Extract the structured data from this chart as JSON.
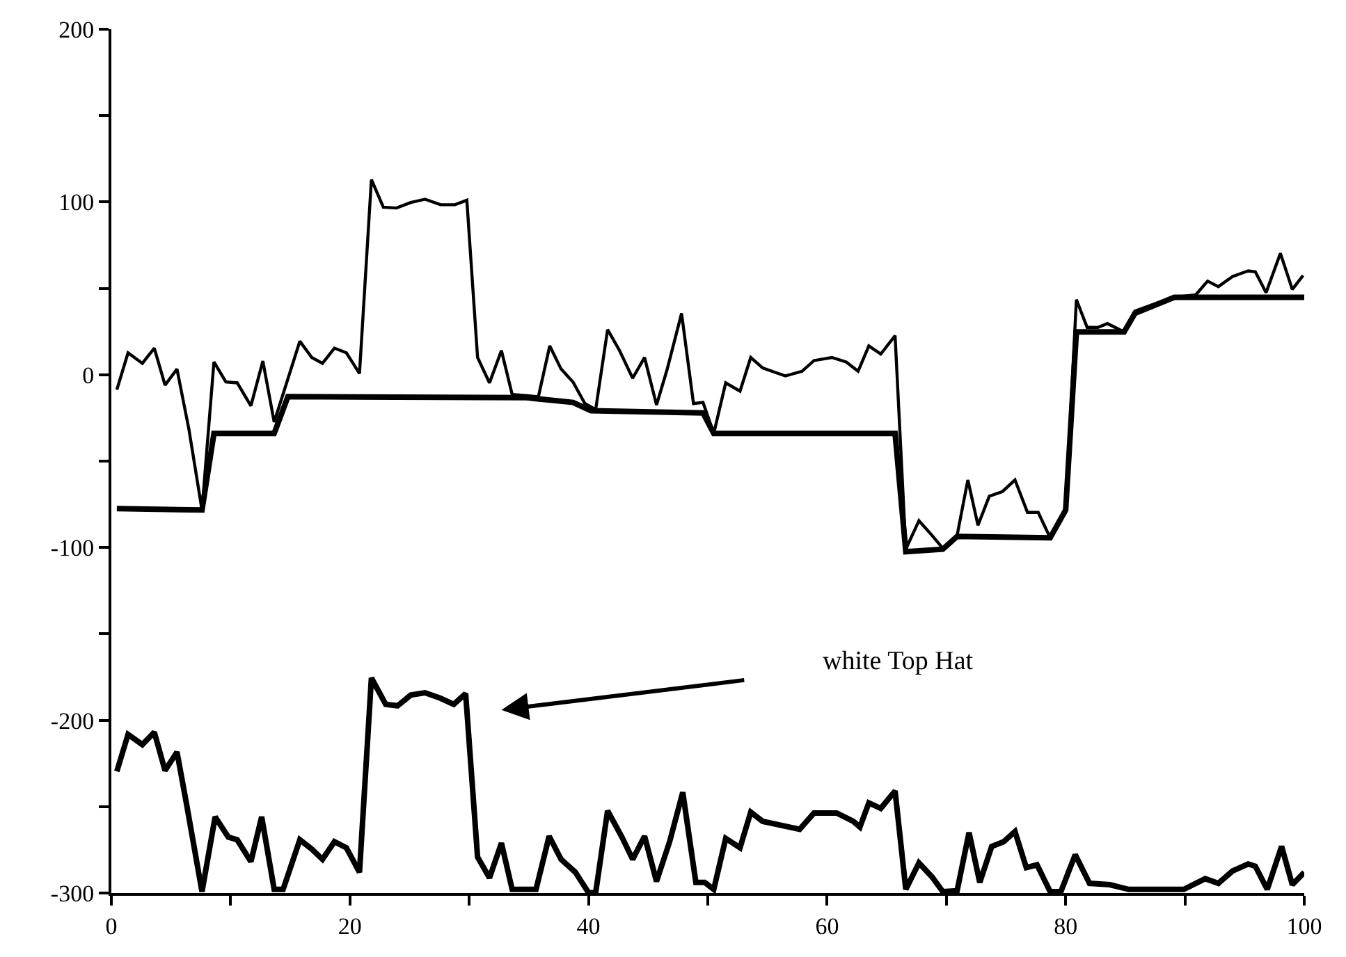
{
  "chart_data": {
    "type": "line",
    "series": [
      {
        "color": "#000000",
        "x": [
          0.46,
          1.4,
          2.6,
          3.6,
          4.5,
          5.5,
          6.5,
          7.6,
          8.6,
          9.6,
          10.55,
          11.7,
          12.7,
          13.65,
          15.8,
          16.8,
          17.7,
          18.7,
          19.7,
          20.8,
          21.8,
          22.8,
          23.9,
          25.1,
          26.3,
          27.6,
          28.8,
          29.8,
          30.7,
          31.7,
          32.7,
          33.6,
          35.8,
          36.75,
          37.7,
          38.7,
          39.7,
          40.6,
          41.6,
          42.6,
          43.7,
          44.7,
          45.7,
          46.6,
          47.8,
          48.8,
          49.6,
          50.5,
          51.5,
          52.7,
          53.6,
          54.6,
          56.5,
          57.9,
          58.9,
          60.4,
          61.6,
          62.6,
          63.5,
          64.5,
          65.7,
          66.6,
          67.7,
          68.8,
          69.7,
          70.9,
          71.8,
          72.65,
          73.6,
          74.7,
          75.75,
          76.8,
          77.7,
          78.7,
          80,
          80.9,
          81.8,
          82.7,
          83.5,
          84.9,
          85.8,
          87.6,
          89.1,
          90.9,
          91.9,
          92.8,
          94,
          95.3,
          95.9,
          96.8,
          98,
          99,
          99.9
        ],
        "values": [
          -8.7,
          12.7,
          6.6,
          15.4,
          -6,
          3.3,
          -31.5,
          -78.3,
          7.4,
          -4.2,
          -4.7,
          -18,
          7.9,
          -27.4,
          19.4,
          10,
          6.6,
          15.4,
          12.7,
          0.7,
          113,
          97,
          96.5,
          99.7,
          101.6,
          98.4,
          98.4,
          101,
          10,
          -4.7,
          14,
          -11.4,
          -12.7,
          16.7,
          3.3,
          -4.2,
          -16.7,
          -20.2,
          26.1,
          14,
          -2,
          10,
          -17.5,
          3.3,
          35.5,
          -16.7,
          -16,
          -34,
          -4.7,
          -9.5,
          10,
          3.9,
          -0.7,
          2,
          8.2,
          10,
          7.4,
          2,
          16.7,
          12,
          22.6,
          -101,
          -84.5,
          -93,
          -100.5,
          -93,
          -60.9,
          -87.1,
          -70.3,
          -67.6,
          -60.9,
          -79.7,
          -79.7,
          -94.4,
          -78.3,
          43.5,
          27.4,
          27.4,
          29.6,
          24.8,
          36.8,
          41.4,
          44.8,
          46.2,
          54.2,
          51,
          56.9,
          60.1,
          59.6,
          47.5,
          70.3,
          49.4,
          57.4
        ]
      },
      {
        "color": "#000000",
        "x": [
          0.46,
          7.6,
          8.6,
          13.65,
          14.8,
          34.8,
          38.7,
          40.2,
          49.6,
          50.5,
          65.7,
          66.6,
          69.7,
          70.9,
          78.7,
          80,
          80.9,
          84.9,
          85.8,
          89.1,
          100
        ],
        "values": [
          -77.5,
          -78.3,
          -34,
          -34,
          -12.7,
          -13.3,
          -16,
          -20.8,
          -22.1,
          -34,
          -34,
          -102.4,
          -101,
          -93.6,
          -94.4,
          -78.3,
          24.8,
          24.8,
          35.5,
          44.8,
          44.8
        ]
      },
      {
        "color": "#000000",
        "x": [
          0.46,
          1.4,
          2.6,
          3.6,
          4.5,
          5.5,
          6.3,
          7.6,
          8.7,
          9.8,
          10.55,
          11.7,
          12.6,
          13.65,
          14.4,
          15.8,
          16.8,
          17.7,
          18.7,
          19.7,
          20.8,
          21.8,
          23,
          24,
          25.1,
          26.3,
          27.6,
          28.7,
          29.7,
          30.7,
          31.7,
          32.7,
          33.6,
          35.6,
          36.7,
          37.7,
          38.9,
          40,
          40.6,
          41.6,
          42.8,
          43.7,
          44.7,
          45.7,
          46.8,
          47.9,
          49,
          49.75,
          50.5,
          51.5,
          52.7,
          53.6,
          54.6,
          57.7,
          58.9,
          60.8,
          62.2,
          62.75,
          63.5,
          64.5,
          65.7,
          66.6,
          67.7,
          68.8,
          69.7,
          70.9,
          71.9,
          72.8,
          73.8,
          74.8,
          75.75,
          76.7,
          77.6,
          78.7,
          79.6,
          80.8,
          82,
          83.7,
          85.3,
          89.9,
          91.7,
          92.8,
          94,
          95.3,
          95.9,
          96.9,
          98.1,
          99,
          100
        ],
        "values": [
          -229.6,
          -208.2,
          -214.1,
          -206.9,
          -229.1,
          -218.4,
          -248.4,
          -299.2,
          -255.9,
          -267.6,
          -269.2,
          -281.8,
          -255.9,
          -297.9,
          -297.9,
          -269.2,
          -274.6,
          -280.5,
          -270.3,
          -273.8,
          -288,
          -175.5,
          -190.8,
          -191.6,
          -185.4,
          -184.1,
          -187.3,
          -190.8,
          -184.6,
          -279.2,
          -291.2,
          -271.1,
          -297.9,
          -297.9,
          -267.1,
          -280.5,
          -288,
          -299.8,
          -299.8,
          -252.4,
          -267.6,
          -280.5,
          -267.1,
          -293.3,
          -270.3,
          -241.7,
          -293.9,
          -293.9,
          -297.9,
          -268.4,
          -273.8,
          -253.2,
          -258.5,
          -263.1,
          -253.7,
          -253.7,
          -258.5,
          -261.8,
          -247.8,
          -251,
          -240.9,
          -297.9,
          -282.6,
          -290.7,
          -299.2,
          -298.7,
          -265,
          -293.9,
          -273,
          -270.3,
          -264.4,
          -285.3,
          -283.7,
          -299.2,
          -299.2,
          -277.8,
          -294.4,
          -295.2,
          -297.9,
          -297.9,
          -291.7,
          -294.4,
          -287.2,
          -283.2,
          -284.5,
          -297.9,
          -273,
          -295.2,
          -288
        ]
      }
    ],
    "xlim": [
      0,
      100
    ],
    "xticks": [
      0,
      {
        "value": 10,
        "label": null
      },
      20,
      {
        "value": 30,
        "label": null
      },
      40,
      {
        "value": 50,
        "label": null
      },
      60,
      {
        "value": 70,
        "label": null
      },
      80,
      {
        "value": 90,
        "label": null
      },
      100
    ],
    "ylim": [
      -300,
      200
    ],
    "yticks": [
      -300,
      {
        "value": -250,
        "label": null
      },
      -200,
      {
        "value": -150,
        "label": null
      },
      -100,
      {
        "value": -50,
        "label": null
      },
      0,
      {
        "value": 50,
        "label": null
      },
      100,
      {
        "value": 150,
        "label": null
      },
      200
    ],
    "annotations": [
      "white Top Hat"
    ],
    "marker": "none",
    "line_style": "solid"
  }
}
